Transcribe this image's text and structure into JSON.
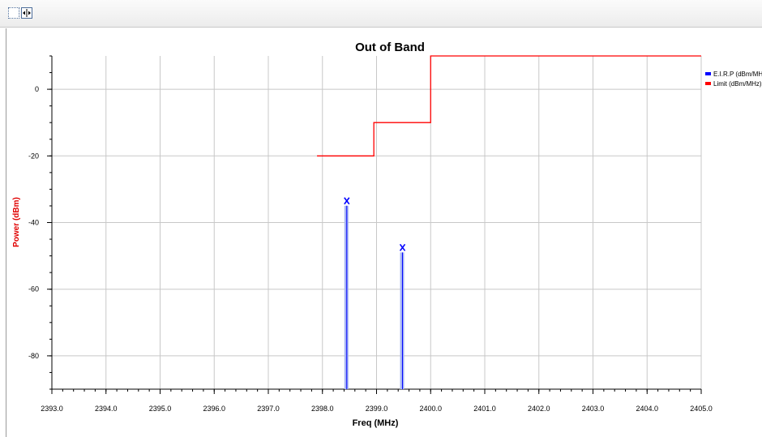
{
  "toolbar": {
    "buttons": [
      {
        "icon": "dotted-box-icon"
      },
      {
        "icon": "fit-horizontal-icon"
      }
    ]
  },
  "chart_data": {
    "type": "line",
    "title": "Out of Band",
    "xlabel": "Freq (MHz)",
    "ylabel": "Power (dBm)",
    "xlim": [
      2393.0,
      2405.0
    ],
    "ylim": [
      -90,
      10
    ],
    "x_ticks": [
      "2393.0",
      "2394.0",
      "2395.0",
      "2396.0",
      "2397.0",
      "2398.0",
      "2399.0",
      "2400.0",
      "2401.0",
      "2402.0",
      "2403.0",
      "2404.0",
      "2405.0"
    ],
    "y_ticks": [
      "0",
      "-20",
      "-40",
      "-60",
      "-80"
    ],
    "grid": true,
    "legend_position": "right",
    "series": [
      {
        "name": "E.I.R.P (dBm/MHz)",
        "color": "#0000ff",
        "style": "stems",
        "points": [
          {
            "x": 2398.45,
            "y": -33.5
          },
          {
            "x": 2399.48,
            "y": -47.5
          }
        ]
      },
      {
        "name": "Limit  (dBm/MHz)",
        "color": "#ff0000",
        "style": "step",
        "points": [
          {
            "x": 2397.9,
            "y": -20
          },
          {
            "x": 2398.95,
            "y": -20
          },
          {
            "x": 2398.95,
            "y": -10
          },
          {
            "x": 2400.0,
            "y": -10
          },
          {
            "x": 2400.0,
            "y": 10
          },
          {
            "x": 2405.0,
            "y": 10
          }
        ]
      }
    ]
  }
}
